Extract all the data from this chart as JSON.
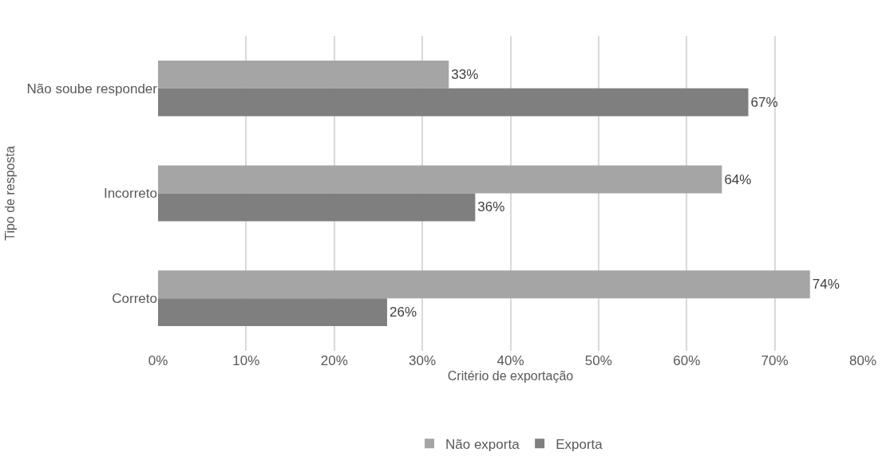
{
  "chart_data": {
    "type": "bar",
    "orientation": "horizontal",
    "xlabel": "Critério de exportação",
    "ylabel": "Tipo de resposta",
    "categories": [
      "Não soube responder",
      "Incorreto",
      "Correto"
    ],
    "series": [
      {
        "name": "Não exporta",
        "color": "#a5a5a5",
        "values": [
          33,
          64,
          74
        ],
        "value_labels": [
          "33%",
          "64%",
          "74%"
        ]
      },
      {
        "name": "Exporta",
        "color": "#7f7f7f",
        "values": [
          67,
          36,
          26
        ],
        "value_labels": [
          "67%",
          "36%",
          "26%"
        ]
      }
    ],
    "xlim": [
      0,
      80
    ],
    "xticks": [
      {
        "value": 0,
        "label": "0%"
      },
      {
        "value": 10,
        "label": "10%"
      },
      {
        "value": 20,
        "label": "20%"
      },
      {
        "value": 30,
        "label": "30%"
      },
      {
        "value": 40,
        "label": "40%"
      },
      {
        "value": 50,
        "label": "50%"
      },
      {
        "value": 60,
        "label": "60%"
      },
      {
        "value": 70,
        "label": "70%"
      },
      {
        "value": 80,
        "label": "80%"
      }
    ],
    "grid": "x",
    "legend": "bottom"
  }
}
